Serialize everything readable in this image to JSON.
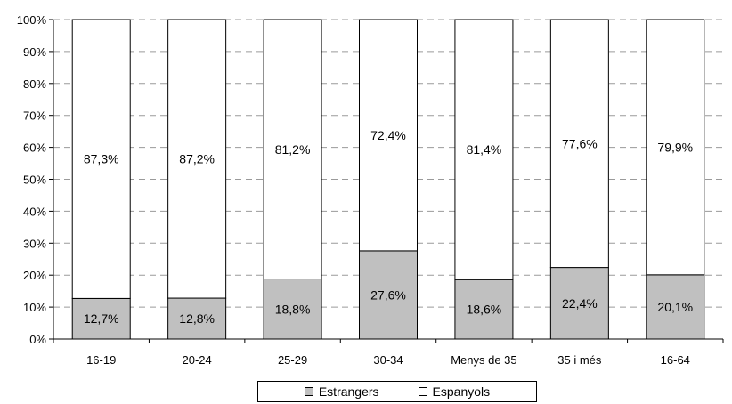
{
  "chart_data": {
    "type": "bar",
    "stacked": true,
    "categories": [
      "16-19",
      "20-24",
      "25-29",
      "30-34",
      "Menys de 35",
      "35 i més",
      "16-64"
    ],
    "series": [
      {
        "name": "Estrangers",
        "color": "#c0c0c0",
        "values": [
          12.7,
          12.8,
          18.8,
          27.6,
          18.6,
          22.4,
          20.1
        ],
        "labels": [
          "12,7%",
          "12,8%",
          "18,8%",
          "27,6%",
          "18,6%",
          "22,4%",
          "20,1%"
        ]
      },
      {
        "name": "Espanyols",
        "color": "#ffffff",
        "values": [
          87.3,
          87.2,
          81.2,
          72.4,
          81.4,
          77.6,
          79.9
        ],
        "labels": [
          "87,3%",
          "87,2%",
          "81,2%",
          "72,4%",
          "81,4%",
          "77,6%",
          "79,9%"
        ]
      }
    ],
    "ylim": [
      0,
      100
    ],
    "yticks": [
      "0%",
      "10%",
      "20%",
      "30%",
      "40%",
      "50%",
      "60%",
      "70%",
      "80%",
      "90%",
      "100%"
    ],
    "grid": true,
    "legend_position": "bottom"
  }
}
